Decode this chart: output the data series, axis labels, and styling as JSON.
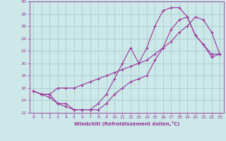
{
  "xlabel": "Windchill (Refroidissement éolien,°C)",
  "bg_color": "#cce8e8",
  "grid_color": "#aacccc",
  "line_color": "#993399",
  "xlim": [
    -0.5,
    23.5
  ],
  "ylim": [
    12,
    30
  ],
  "xticks": [
    0,
    1,
    2,
    3,
    4,
    5,
    6,
    7,
    8,
    9,
    10,
    11,
    12,
    13,
    14,
    15,
    16,
    17,
    18,
    19,
    20,
    21,
    22,
    23
  ],
  "yticks": [
    12,
    14,
    16,
    18,
    20,
    22,
    24,
    26,
    28,
    30
  ],
  "line1_x": [
    0,
    1,
    2,
    3,
    4,
    5,
    6,
    7,
    8,
    9,
    10,
    11,
    12,
    13,
    14,
    15,
    16,
    17,
    18,
    19,
    20,
    21,
    22,
    23
  ],
  "line1_y": [
    15.5,
    15.0,
    15.0,
    13.5,
    13.5,
    12.5,
    12.5,
    12.5,
    13.5,
    15.0,
    17.5,
    20.0,
    22.5,
    20.0,
    22.5,
    26.0,
    28.5,
    29.0,
    29.0,
    27.5,
    24.5,
    23.0,
    21.5,
    21.5
  ],
  "line2_x": [
    0,
    1,
    2,
    3,
    4,
    5,
    6,
    7,
    8,
    9,
    10,
    11,
    12,
    13,
    14,
    15,
    16,
    17,
    18,
    19,
    20,
    21,
    22,
    23
  ],
  "line2_y": [
    15.5,
    15.0,
    15.0,
    16.0,
    16.0,
    16.0,
    16.5,
    17.0,
    17.5,
    18.0,
    18.5,
    19.0,
    19.5,
    20.0,
    20.5,
    21.5,
    22.5,
    23.5,
    25.0,
    26.0,
    27.5,
    27.0,
    25.0,
    21.5
  ],
  "line3_x": [
    0,
    1,
    2,
    3,
    4,
    5,
    6,
    7,
    8,
    9,
    10,
    11,
    12,
    13,
    14,
    15,
    16,
    17,
    18,
    19,
    20,
    21,
    22,
    23
  ],
  "line3_y": [
    15.5,
    15.0,
    14.5,
    13.5,
    13.0,
    12.5,
    12.5,
    12.5,
    12.5,
    13.5,
    15.0,
    16.0,
    17.0,
    17.5,
    18.0,
    20.5,
    22.5,
    25.5,
    27.0,
    27.5,
    24.5,
    23.0,
    21.0,
    21.5
  ]
}
